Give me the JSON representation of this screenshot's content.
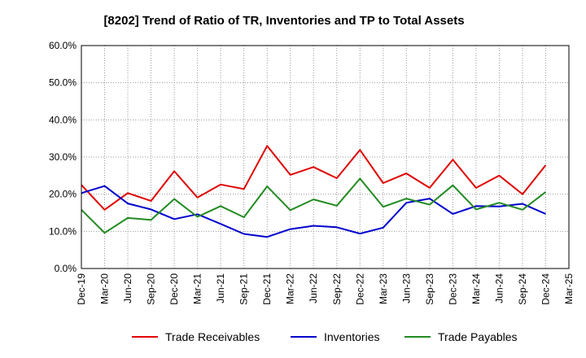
{
  "chart_data": {
    "type": "line",
    "title": "[8202]  Trend of Ratio of TR, Inventories and TP to Total Assets",
    "xlabel": "",
    "ylabel": "",
    "ylim": [
      0,
      60
    ],
    "y_ticks": [
      "0.0%",
      "10.0%",
      "20.0%",
      "30.0%",
      "40.0%",
      "50.0%",
      "60.0%"
    ],
    "x_tick_labels": [
      "Dec-19",
      "Mar-20",
      "Jun-20",
      "Sep-20",
      "Dec-20",
      "Mar-21",
      "Jun-21",
      "Sep-21",
      "Dec-21",
      "Mar-22",
      "Jun-22",
      "Sep-22",
      "Dec-22",
      "Mar-23",
      "Jun-23",
      "Sep-23",
      "Dec-23",
      "Mar-24",
      "Jun-24",
      "Sep-24",
      "Dec-24",
      "Mar-25"
    ],
    "x": [
      "Dec-19",
      "Mar-20",
      "Jun-20",
      "Sep-20",
      "Dec-20",
      "Mar-21",
      "Jun-21",
      "Sep-21",
      "Dec-21",
      "Mar-22",
      "Jun-22",
      "Sep-22",
      "Dec-22",
      "Mar-23",
      "Jun-23",
      "Sep-23",
      "Dec-23",
      "Mar-24",
      "Jun-24",
      "Sep-24",
      "Dec-24"
    ],
    "grid": true,
    "legend_position": "bottom",
    "series": [
      {
        "name": "Trade Receivables",
        "color": "#e00000",
        "values": [
          22.5,
          15.8,
          20.3,
          18.2,
          26.2,
          19.1,
          22.6,
          21.4,
          33.0,
          25.2,
          27.3,
          24.3,
          31.9,
          23.0,
          25.6,
          21.7,
          29.3,
          21.7,
          25.0,
          20.0,
          27.8
        ]
      },
      {
        "name": "Inventories",
        "color": "#0000cc",
        "values": [
          20.3,
          22.2,
          17.5,
          15.9,
          13.3,
          14.6,
          12.0,
          9.3,
          8.5,
          10.6,
          11.5,
          11.1,
          9.4,
          11.0,
          17.7,
          18.8,
          14.7,
          16.8,
          16.7,
          17.4,
          14.7
        ]
      },
      {
        "name": "Trade Payables",
        "color": "#228b22",
        "values": [
          15.8,
          9.6,
          13.6,
          13.1,
          18.7,
          13.9,
          16.8,
          13.8,
          22.1,
          15.7,
          18.6,
          16.9,
          24.2,
          16.6,
          18.8,
          17.2,
          22.4,
          15.9,
          17.7,
          15.8,
          20.6
        ]
      }
    ]
  }
}
